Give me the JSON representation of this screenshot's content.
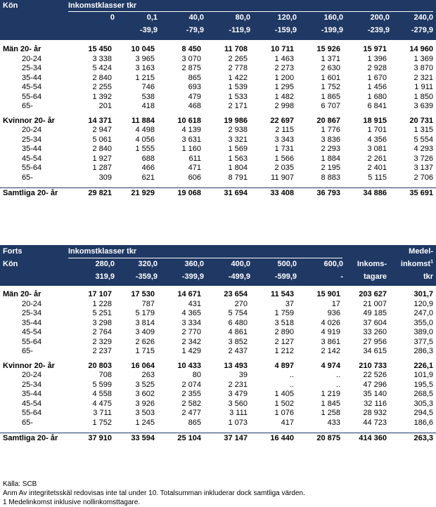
{
  "table1": {
    "corner_label": "Kön",
    "group_label": "Inkomstklasser tkr",
    "columns": [
      {
        "l1": "0",
        "l2": ""
      },
      {
        "l1": "0,1",
        "l2": "-39,9"
      },
      {
        "l1": "40,0",
        "l2": "-79,9"
      },
      {
        "l1": "80,0",
        "l2": "-119,9"
      },
      {
        "l1": "120,0",
        "l2": "-159,9"
      },
      {
        "l1": "160,0",
        "l2": "-199,9"
      },
      {
        "l1": "200,0",
        "l2": "-239,9"
      },
      {
        "l1": "240,0",
        "l2": "-279,9"
      }
    ],
    "rows": [
      {
        "label": "Män 20- år",
        "bold": true,
        "values": [
          "15 450",
          "10 045",
          "8 450",
          "11 708",
          "10 711",
          "15 926",
          "15 971",
          "14 960"
        ]
      },
      {
        "label": "20-24",
        "values": [
          "3 338",
          "3 965",
          "3 070",
          "2 265",
          "1 463",
          "1 371",
          "1 396",
          "1 369"
        ]
      },
      {
        "label": "25-34",
        "values": [
          "5 424",
          "3 163",
          "2 875",
          "2 778",
          "2 273",
          "2 630",
          "2 928",
          "3 870"
        ]
      },
      {
        "label": "35-44",
        "values": [
          "2 840",
          "1 215",
          "865",
          "1 422",
          "1 200",
          "1 601",
          "1 670",
          "2 321"
        ]
      },
      {
        "label": "45-54",
        "values": [
          "2 255",
          "746",
          "693",
          "1 539",
          "1 295",
          "1 752",
          "1 456",
          "1 911"
        ]
      },
      {
        "label": "55-64",
        "values": [
          "1 392",
          "538",
          "479",
          "1 533",
          "1 482",
          "1 865",
          "1 680",
          "1 850"
        ]
      },
      {
        "label": "65-",
        "values": [
          "201",
          "418",
          "468",
          "2 171",
          "2 998",
          "6 707",
          "6 841",
          "3 639"
        ]
      },
      {
        "label": "Kvinnor 20- år",
        "bold": true,
        "values": [
          "14 371",
          "11 884",
          "10 618",
          "19 986",
          "22 697",
          "20 867",
          "18 915",
          "20 731"
        ]
      },
      {
        "label": "20-24",
        "values": [
          "2 947",
          "4 498",
          "4 139",
          "2 938",
          "2 115",
          "1 776",
          "1 701",
          "1 315"
        ]
      },
      {
        "label": "25-34",
        "values": [
          "5 061",
          "4 056",
          "3 631",
          "3 321",
          "3 343",
          "3 836",
          "4 356",
          "5 554"
        ]
      },
      {
        "label": "35-44",
        "values": [
          "2 840",
          "1 555",
          "1 160",
          "1 569",
          "1 731",
          "2 293",
          "3 081",
          "4 293"
        ]
      },
      {
        "label": "45-54",
        "values": [
          "1 927",
          "688",
          "611",
          "1 563",
          "1 566",
          "1 884",
          "2 261",
          "3 726"
        ]
      },
      {
        "label": "55-64",
        "values": [
          "1 287",
          "466",
          "471",
          "1 804",
          "2 035",
          "2 195",
          "2 401",
          "3 137"
        ]
      },
      {
        "label": "65-",
        "values": [
          "309",
          "621",
          "606",
          "8 791",
          "11 907",
          "8 883",
          "5 115",
          "2 706"
        ]
      },
      {
        "label": "Samtliga 20- år",
        "total": true,
        "values": [
          "29 821",
          "21 929",
          "19 068",
          "31 694",
          "33 408",
          "36 793",
          "34 886",
          "35 691"
        ]
      }
    ]
  },
  "table2": {
    "forts_label": "Forts",
    "corner_label": "Kön",
    "group_label": "Inkomstklasser tkr",
    "columns": [
      {
        "l1": "280,0",
        "l2": "319,9"
      },
      {
        "l1": "320,0",
        "l2": "-359,9"
      },
      {
        "l1": "360,0",
        "l2": "-399,9"
      },
      {
        "l1": "400,0",
        "l2": "-499,9"
      },
      {
        "l1": "500,0",
        "l2": "-599,9"
      },
      {
        "l1": "600,0",
        "l2": "-"
      }
    ],
    "recipients_header": {
      "l1": "Inkoms-",
      "l2": "tagare"
    },
    "mean_header": {
      "l1": "Medel-",
      "l2": "inkomst",
      "sup": "1",
      "l3": "tkr"
    },
    "rows": [
      {
        "label": "Män 20- år",
        "bold": true,
        "values": [
          "17 107",
          "17 530",
          "14 671",
          "23 654",
          "11 543",
          "15 901",
          "203 627",
          "301,7"
        ]
      },
      {
        "label": "20-24",
        "values": [
          "1 228",
          "787",
          "431",
          "270",
          "37",
          "17",
          "21 007",
          "120,9"
        ]
      },
      {
        "label": "25-34",
        "values": [
          "5 251",
          "5 179",
          "4 365",
          "5 754",
          "1 759",
          "936",
          "49 185",
          "247,0"
        ]
      },
      {
        "label": "35-44",
        "values": [
          "3 298",
          "3 814",
          "3 334",
          "6 480",
          "3 518",
          "4 026",
          "37 604",
          "355,0"
        ]
      },
      {
        "label": "45-54",
        "values": [
          "2 764",
          "3 409",
          "2 770",
          "4 861",
          "2 890",
          "4 919",
          "33 260",
          "389,0"
        ]
      },
      {
        "label": "55-64",
        "values": [
          "2 329",
          "2 626",
          "2 342",
          "3 852",
          "2 127",
          "3 861",
          "27 956",
          "377,5"
        ]
      },
      {
        "label": "65-",
        "values": [
          "2 237",
          "1 715",
          "1 429",
          "2 437",
          "1 212",
          "2 142",
          "34 615",
          "286,3"
        ]
      },
      {
        "label": "Kvinnor 20- år",
        "bold": true,
        "values": [
          "20 803",
          "16 064",
          "10 433",
          "13 493",
          "4 897",
          "4 974",
          "210 733",
          "226,1"
        ]
      },
      {
        "label": "20-24",
        "values": [
          "708",
          "263",
          "80",
          "39",
          "..",
          "..",
          "22 526",
          "101,9"
        ]
      },
      {
        "label": "25-34",
        "values": [
          "5 599",
          "3 525",
          "2 074",
          "2 231",
          "..",
          "..",
          "47 296",
          "195,5"
        ]
      },
      {
        "label": "35-44",
        "values": [
          "4 558",
          "3 602",
          "2 355",
          "3 479",
          "1 405",
          "1 219",
          "35 140",
          "268,5"
        ]
      },
      {
        "label": "45-54",
        "values": [
          "4 475",
          "3 926",
          "2 582",
          "3 560",
          "1 502",
          "1 845",
          "32 116",
          "305,3"
        ]
      },
      {
        "label": "55-64",
        "values": [
          "3 711",
          "3 503",
          "2 477",
          "3 111",
          "1 076",
          "1 258",
          "28 932",
          "294,5"
        ]
      },
      {
        "label": "65-",
        "values": [
          "1 752",
          "1 245",
          "865",
          "1 073",
          "417",
          "433",
          "44 723",
          "186,6"
        ]
      },
      {
        "label": "Samtliga 20- år",
        "total": true,
        "values": [
          "37 910",
          "33 594",
          "25 104",
          "37 147",
          "16 440",
          "20 875",
          "414 360",
          "263,3"
        ]
      }
    ]
  },
  "footnotes": {
    "source": "Källa:  SCB",
    "note": "Anm  Av integritetsskäl redovisas inte tal under 10. Totalsumman inkluderar dock samtliga värden.",
    "footnote1": "1  Medelinkomst inklusive nollinkomsttagare."
  }
}
